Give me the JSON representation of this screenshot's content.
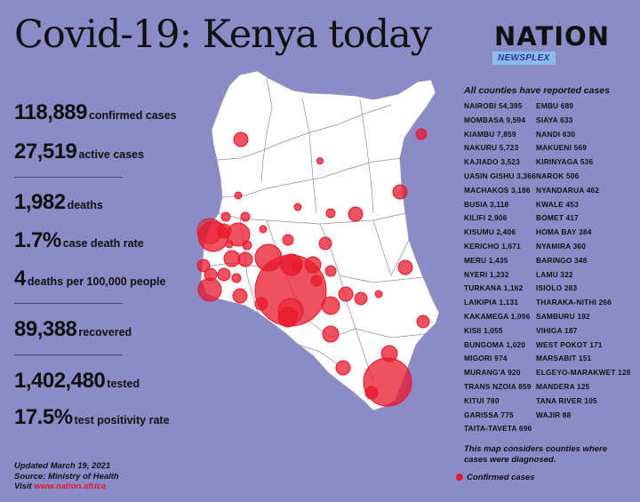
{
  "title": "Covid-19: Kenya today",
  "logo": {
    "nation": "NATION",
    "newsplex": "NEWSPLEX"
  },
  "stats": [
    {
      "value": "118,889",
      "label": "confirmed cases"
    },
    {
      "value": "27,519",
      "label": "active cases"
    },
    {
      "value": "1,982",
      "label": "deaths"
    },
    {
      "value": "1.7%",
      "label": "case death rate"
    },
    {
      "value": "4",
      "label": "deaths per 100,000 people"
    },
    {
      "value": "89,388",
      "label": "recovered"
    },
    {
      "value": "1,402,480",
      "label": "tested"
    },
    {
      "value": "17.5%",
      "label": "test positivity rate"
    }
  ],
  "footer": {
    "updated": "Updated March 19, 2021",
    "source": "Source: Ministry of Health",
    "visit_prefix": "Visit ",
    "visit_link": "www.nation.africa"
  },
  "counties_header": "All counties have reported cases",
  "counties_left": [
    {
      "name": "NAIROBI",
      "cases": "54,395"
    },
    {
      "name": "MOMBASA",
      "cases": "9,594"
    },
    {
      "name": "KIAMBU",
      "cases": "7,859"
    },
    {
      "name": "NAKURU",
      "cases": "5,723"
    },
    {
      "name": "KAJIADO",
      "cases": "3,523"
    },
    {
      "name": "UASIN GISHU",
      "cases": "3,366"
    },
    {
      "name": "MACHAKOS",
      "cases": "3,186"
    },
    {
      "name": "BUSIA",
      "cases": "3,118"
    },
    {
      "name": "KILIFI",
      "cases": "2,906"
    },
    {
      "name": "KISUMU",
      "cases": "2,406"
    },
    {
      "name": "KERICHO",
      "cases": "1,671"
    },
    {
      "name": "MERU",
      "cases": "1,435"
    },
    {
      "name": "NYERI",
      "cases": "1,232"
    },
    {
      "name": "TURKANA",
      "cases": "1,162"
    },
    {
      "name": "LAIKIPIA",
      "cases": "1,131"
    },
    {
      "name": "KAKAMEGA",
      "cases": "1,096"
    },
    {
      "name": "KISII",
      "cases": "1,055"
    },
    {
      "name": "BUNGOMA",
      "cases": "1,020"
    },
    {
      "name": "MIGORI",
      "cases": "974"
    },
    {
      "name": "MURANG'A",
      "cases": "920"
    },
    {
      "name": "TRANS NZOIA",
      "cases": "859"
    },
    {
      "name": "KITUI",
      "cases": "780"
    },
    {
      "name": "GARISSA",
      "cases": "775"
    },
    {
      "name": "TAITA-TAVETA",
      "cases": "696"
    }
  ],
  "counties_right": [
    {
      "name": "EMBU",
      "cases": "689"
    },
    {
      "name": "SIAYA",
      "cases": "633"
    },
    {
      "name": "NANDI",
      "cases": "630"
    },
    {
      "name": "MAKUENI",
      "cases": "569"
    },
    {
      "name": "KIRINYAGA",
      "cases": "536"
    },
    {
      "name": "NAROK",
      "cases": "506"
    },
    {
      "name": "NYANDARUA",
      "cases": "462"
    },
    {
      "name": "KWALE",
      "cases": "453"
    },
    {
      "name": "BOMET",
      "cases": "417"
    },
    {
      "name": "HOMA BAY",
      "cases": "384"
    },
    {
      "name": "NYAMIRA",
      "cases": "360"
    },
    {
      "name": "BARINGO",
      "cases": "348"
    },
    {
      "name": "LAMU",
      "cases": "322"
    },
    {
      "name": "ISIOLO",
      "cases": "283"
    },
    {
      "name": "THARAKA-NITHI",
      "cases": "266"
    },
    {
      "name": "SAMBURU",
      "cases": "192"
    },
    {
      "name": "VIHIGA",
      "cases": "187"
    },
    {
      "name": "WEST POKOT",
      "cases": "171"
    },
    {
      "name": "MARSABIT",
      "cases": "151"
    },
    {
      "name": "ELGEYO-MARAKWET",
      "cases": "128"
    },
    {
      "name": "MANDERA",
      "cases": "125"
    },
    {
      "name": "TANA RIVER",
      "cases": "105"
    },
    {
      "name": "WAJIR",
      "cases": "88"
    }
  ],
  "note": [
    "This map considers counties where",
    "cases were diagnosed."
  ],
  "legend_label": "Confirmed cases",
  "colors": {
    "background": "#8b8bc7",
    "bubble": "#e8182c",
    "link": "#e8142c"
  }
}
